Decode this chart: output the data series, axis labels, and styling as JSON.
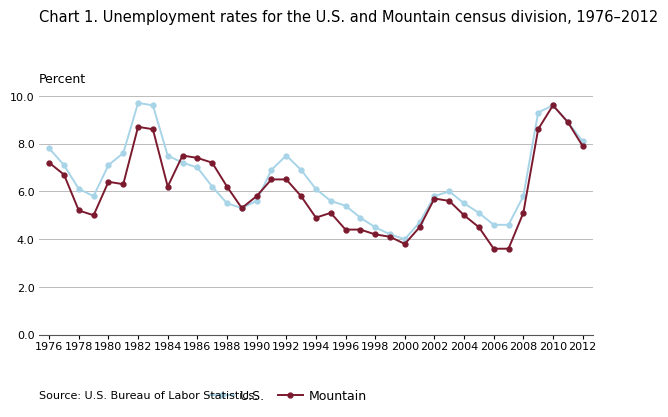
{
  "title": "Chart 1. Unemployment rates for the U.S. and Mountain census division, 1976–2012",
  "ylabel": "Percent",
  "source": "Source: U.S. Bureau of Labor Statistics.",
  "years": [
    1976,
    1977,
    1978,
    1979,
    1980,
    1981,
    1982,
    1983,
    1984,
    1985,
    1986,
    1987,
    1988,
    1989,
    1990,
    1991,
    1992,
    1993,
    1994,
    1995,
    1996,
    1997,
    1998,
    1999,
    2000,
    2001,
    2002,
    2003,
    2004,
    2005,
    2006,
    2007,
    2008,
    2009,
    2010,
    2011,
    2012
  ],
  "us": [
    7.8,
    7.1,
    6.1,
    5.8,
    7.1,
    7.6,
    9.7,
    9.6,
    7.5,
    7.2,
    7.0,
    6.2,
    5.5,
    5.3,
    5.6,
    6.9,
    7.5,
    6.9,
    6.1,
    5.6,
    5.4,
    4.9,
    4.5,
    4.2,
    4.0,
    4.7,
    5.8,
    6.0,
    5.5,
    5.1,
    4.6,
    4.6,
    5.8,
    9.3,
    9.6,
    8.9,
    8.1
  ],
  "mountain": [
    7.2,
    6.7,
    5.2,
    5.0,
    6.4,
    6.3,
    8.7,
    8.6,
    6.2,
    7.5,
    7.4,
    7.2,
    6.2,
    5.3,
    5.8,
    6.5,
    6.5,
    5.8,
    4.9,
    5.1,
    4.4,
    4.4,
    4.2,
    4.1,
    3.8,
    4.5,
    5.7,
    5.6,
    5.0,
    4.5,
    3.6,
    3.6,
    5.1,
    8.6,
    9.6,
    8.9,
    7.9
  ],
  "us_color": "#a8d4e8",
  "mountain_color": "#7b1a2e",
  "ylim": [
    0.0,
    10.0
  ],
  "yticks": [
    0.0,
    2.0,
    4.0,
    6.0,
    8.0,
    10.0
  ],
  "xtick_years": [
    1976,
    1978,
    1980,
    1982,
    1984,
    1986,
    1988,
    1990,
    1992,
    1994,
    1996,
    1998,
    2000,
    2002,
    2004,
    2006,
    2008,
    2010,
    2012
  ],
  "title_fontsize": 10.5,
  "axis_label_fontsize": 9,
  "tick_fontsize": 8,
  "legend_us": "U.S.",
  "legend_mountain": "Mountain",
  "background_color": "#ffffff",
  "grid_color": "#bbbbbb",
  "marker_size": 3.5
}
